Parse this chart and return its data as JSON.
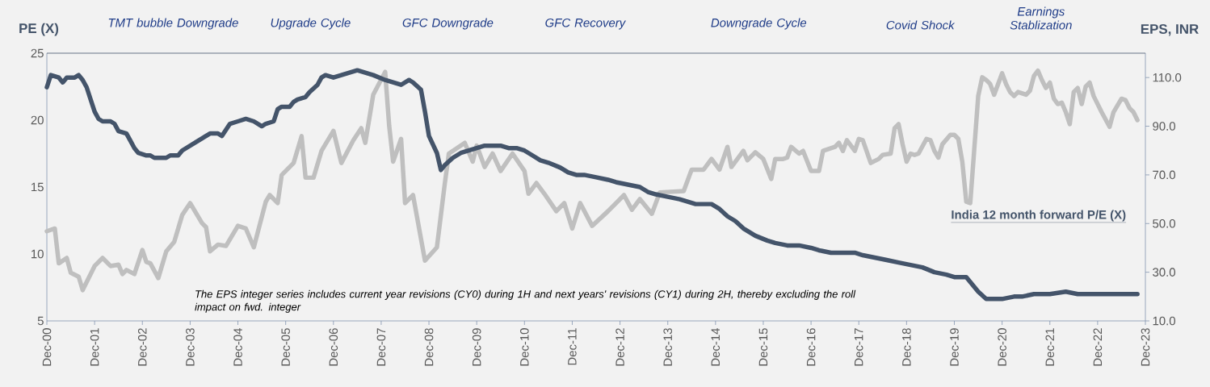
{
  "chart_data": {
    "type": "line",
    "ylabel": "PE (X)",
    "y2label": "EPS, INR",
    "xlim": [
      "2000-12",
      "2023-12"
    ],
    "xticks": [
      {
        "value": "2000-12",
        "label": "Dec-00"
      },
      {
        "value": "2001-12",
        "label": "Dec-01"
      },
      {
        "value": "2002-12",
        "label": "Dec-02"
      },
      {
        "value": "2003-12",
        "label": "Dec-03"
      },
      {
        "value": "2004-12",
        "label": "Dec-04"
      },
      {
        "value": "2005-12",
        "label": "Dec-05"
      },
      {
        "value": "2006-12",
        "label": "Dec-06"
      },
      {
        "value": "2007-12",
        "label": "Dec-07"
      },
      {
        "value": "2008-12",
        "label": "Dec-08"
      },
      {
        "value": "2009-12",
        "label": "Dec-09"
      },
      {
        "value": "2010-12",
        "label": "Dec-10"
      },
      {
        "value": "2011-12",
        "label": "Dec-11"
      },
      {
        "value": "2012-12",
        "label": "Dec-12"
      },
      {
        "value": "2013-12",
        "label": "Dec-13"
      },
      {
        "value": "2014-12",
        "label": "Dec-14"
      },
      {
        "value": "2015-12",
        "label": "Dec-15"
      },
      {
        "value": "2016-12",
        "label": "Dec-16"
      },
      {
        "value": "2017-12",
        "label": "Dec-17"
      },
      {
        "value": "2018-12",
        "label": "Dec-18"
      },
      {
        "value": "2019-12",
        "label": "Dec-19"
      },
      {
        "value": "2020-12",
        "label": "Dec-20"
      },
      {
        "value": "2021-12",
        "label": "Dec-21"
      },
      {
        "value": "2022-12",
        "label": "Dec-22"
      },
      {
        "value": "2023-12",
        "label": "Dec-23"
      }
    ],
    "ylim": [
      5,
      25
    ],
    "yticks": [
      5,
      10,
      15,
      20,
      25
    ],
    "y2lim": [
      10,
      120
    ],
    "y2ticks": [
      {
        "value": 10,
        "label": "10.0"
      },
      {
        "value": 30,
        "label": "30.0"
      },
      {
        "value": 50,
        "label": "50.0"
      },
      {
        "value": 70,
        "label": "70.0"
      },
      {
        "value": 90,
        "label": "90.0"
      },
      {
        "value": 110,
        "label": "110.0"
      }
    ],
    "series": [
      {
        "name": "India 12 month forward P/E (X)",
        "color": "#bfbfbf",
        "x": [
          "2000-12",
          "2001-02",
          "2001-03",
          "2001-05",
          "2001-06",
          "2001-08",
          "2001-09",
          "2001-12",
          "2002-02",
          "2002-04",
          "2002-06",
          "2002-07",
          "2002-08",
          "2002-10",
          "2002-12",
          "2003-01",
          "2003-02",
          "2003-04",
          "2003-06",
          "2003-08",
          "2003-10",
          "2003-12",
          "2004-03",
          "2004-04",
          "2004-05",
          "2004-07",
          "2004-09",
          "2004-12",
          "2005-02",
          "2005-04",
          "2005-07",
          "2005-08",
          "2005-10",
          "2005-11",
          "2006-02",
          "2006-04",
          "2006-05",
          "2006-07",
          "2006-09",
          "2006-12",
          "2007-02",
          "2007-05",
          "2007-07",
          "2007-08",
          "2007-10",
          "2008-01",
          "2008-02",
          "2008-03",
          "2008-05",
          "2008-06",
          "2008-08",
          "2008-11",
          "2009-02",
          "2009-04",
          "2009-05",
          "2009-09",
          "2009-11",
          "2009-12",
          "2010-02",
          "2010-04",
          "2010-06",
          "2010-09",
          "2010-12",
          "2011-01",
          "2011-03",
          "2011-05",
          "2011-08",
          "2011-10",
          "2011-12",
          "2012-02",
          "2012-05",
          "2012-09",
          "2013-01",
          "2013-03",
          "2013-05",
          "2013-08",
          "2013-10",
          "2014-04",
          "2014-06",
          "2014-09",
          "2014-11",
          "2015-01",
          "2015-03",
          "2015-04",
          "2015-07",
          "2015-08",
          "2015-10",
          "2015-12",
          "2016-02",
          "2016-03",
          "2016-05",
          "2016-06",
          "2016-07",
          "2016-09",
          "2016-10",
          "2016-12",
          "2017-02",
          "2017-03",
          "2017-06",
          "2017-07",
          "2017-08",
          "2017-09",
          "2017-11",
          "2017-12",
          "2018-01",
          "2018-03",
          "2018-05",
          "2018-06",
          "2018-08",
          "2018-09",
          "2018-10",
          "2018-11",
          "2018-12",
          "2019-01",
          "2019-02",
          "2019-03",
          "2019-05",
          "2019-06",
          "2019-07",
          "2019-08",
          "2019-09",
          "2019-11",
          "2019-12",
          "2020-01",
          "2020-02",
          "2020-03",
          "2020-04",
          "2020-05",
          "2020-06",
          "2020-07",
          "2020-08",
          "2020-09",
          "2020-10",
          "2020-11",
          "2020-12",
          "2021-01",
          "2021-02",
          "2021-03",
          "2021-04",
          "2021-06",
          "2021-07",
          "2021-08",
          "2021-09",
          "2021-10",
          "2021-11",
          "2021-12",
          "2022-01",
          "2022-02",
          "2022-03",
          "2022-04",
          "2022-05",
          "2022-06",
          "2022-07",
          "2022-08",
          "2022-09",
          "2022-10",
          "2022-11",
          "2023-01",
          "2023-03",
          "2023-04",
          "2023-06",
          "2023-07",
          "2023-08",
          "2023-09",
          "2023-10"
        ],
        "values": [
          11.7,
          11.9,
          9.3,
          9.7,
          8.6,
          8.3,
          7.3,
          9.1,
          9.7,
          9.1,
          9.2,
          8.5,
          8.8,
          8.5,
          10.3,
          9.4,
          9.3,
          8.2,
          10.2,
          10.9,
          12.9,
          13.8,
          12.3,
          12.0,
          10.2,
          10.7,
          10.6,
          12.1,
          11.9,
          10.5,
          13.9,
          14.4,
          13.8,
          15.9,
          16.8,
          18.8,
          15.7,
          15.7,
          17.7,
          19.2,
          16.8,
          18.5,
          19.4,
          18.3,
          21.9,
          23.6,
          19.6,
          16.9,
          18.6,
          13.8,
          14.4,
          9.5,
          10.5,
          15.3,
          17.5,
          18.3,
          16.9,
          18.1,
          16.5,
          17.5,
          16.2,
          17.5,
          16.2,
          14.5,
          15.3,
          14.5,
          13.2,
          13.8,
          11.9,
          13.8,
          12.1,
          13.2,
          14.4,
          13.3,
          14.1,
          13.0,
          14.6,
          14.7,
          16.3,
          16.3,
          17.1,
          16.3,
          18.0,
          16.5,
          17.7,
          17.0,
          17.6,
          17.1,
          15.6,
          17.1,
          17.1,
          17.2,
          18.0,
          17.5,
          17.7,
          16.2,
          16.2,
          17.7,
          18.0,
          18.3,
          17.7,
          18.5,
          17.7,
          18.6,
          18.5,
          16.8,
          17.1,
          17.4,
          17.5,
          19.4,
          19.7,
          18.2,
          16.9,
          17.5,
          17.4,
          17.5,
          18.6,
          18.5,
          17.7,
          17.2,
          18.2,
          18.9,
          18.9,
          18.6,
          16.9,
          13.9,
          13.8,
          17.8,
          21.8,
          23.2,
          23.0,
          22.7,
          21.9,
          22.7,
          23.5,
          22.7,
          22.1,
          21.8,
          22.1,
          21.9,
          22.2,
          23.3,
          23.7,
          23.0,
          22.4,
          22.8,
          21.6,
          21.2,
          21.3,
          20.6,
          19.7,
          22.1,
          22.4,
          21.2,
          22.5,
          22.8,
          21.8,
          20.6,
          19.5,
          20.6,
          21.6,
          21.5,
          20.9,
          20.6,
          20.0
        ]
      },
      {
        "axis": "y2",
        "color": "#44546a",
        "x": [
          "2000-12",
          "2001-01",
          "2001-03",
          "2001-04",
          "2001-05",
          "2001-06",
          "2001-07",
          "2001-08",
          "2001-09",
          "2001-10",
          "2001-11",
          "2001-12",
          "2002-01",
          "2002-02",
          "2002-04",
          "2002-05",
          "2002-06",
          "2002-08",
          "2002-09",
          "2002-10",
          "2002-11",
          "2003-01",
          "2003-02",
          "2003-03",
          "2003-05",
          "2003-06",
          "2003-07",
          "2003-09",
          "2003-10",
          "2003-12",
          "2004-02",
          "2004-03",
          "2004-05",
          "2004-07",
          "2004-08",
          "2004-10",
          "2004-12",
          "2005-02",
          "2005-04",
          "2005-06",
          "2005-07",
          "2005-09",
          "2005-10",
          "2005-11",
          "2006-01",
          "2006-02",
          "2006-03",
          "2006-05",
          "2006-06",
          "2006-08",
          "2006-09",
          "2006-10",
          "2006-12",
          "2007-02",
          "2007-04",
          "2007-06",
          "2007-08",
          "2007-10",
          "2008-01",
          "2008-03",
          "2008-05",
          "2008-07",
          "2008-08",
          "2008-10",
          "2008-11",
          "2008-12",
          "2009-02",
          "2009-03",
          "2009-04",
          "2009-06",
          "2009-08",
          "2009-10",
          "2009-12",
          "2010-02",
          "2010-04",
          "2010-06",
          "2010-08",
          "2010-10",
          "2010-12",
          "2011-02",
          "2011-04",
          "2011-06",
          "2011-09",
          "2011-11",
          "2012-01",
          "2012-03",
          "2012-06",
          "2012-09",
          "2012-11",
          "2013-02",
          "2013-05",
          "2013-07",
          "2013-09",
          "2013-12",
          "2014-03",
          "2014-05",
          "2014-07",
          "2014-09",
          "2014-11",
          "2015-01",
          "2015-03",
          "2015-05",
          "2015-07",
          "2015-10",
          "2016-01",
          "2016-03",
          "2016-06",
          "2016-09",
          "2016-12",
          "2017-02",
          "2017-05",
          "2017-07",
          "2017-11",
          "2018-01",
          "2018-04",
          "2018-07",
          "2018-10",
          "2019-01",
          "2019-04",
          "2019-07",
          "2019-10",
          "2019-12",
          "2020-03",
          "2020-04",
          "2020-06",
          "2020-08",
          "2020-09",
          "2020-12",
          "2021-03",
          "2021-05",
          "2021-08",
          "2021-12",
          "2022-04",
          "2022-07",
          "2022-10",
          "2023-02",
          "2023-06",
          "2023-08",
          "2023-10"
        ],
        "values": [
          106,
          111,
          110,
          108,
          110,
          110,
          110,
          111,
          109,
          106,
          101,
          96,
          93,
          92,
          92,
          91,
          88,
          87,
          84,
          81,
          79,
          78,
          78,
          77,
          77,
          77,
          78,
          78,
          80,
          82,
          84,
          85,
          87,
          87,
          86,
          91,
          92,
          93,
          92,
          90,
          91,
          92,
          97,
          98,
          98,
          100,
          101,
          102,
          104,
          107,
          110,
          111,
          110,
          111,
          112,
          113,
          112,
          111,
          109,
          108,
          107,
          109,
          108,
          105,
          96,
          86,
          79,
          72,
          74,
          77,
          79,
          80,
          81,
          82,
          82,
          82,
          81,
          81,
          80,
          78,
          76,
          75,
          73,
          71,
          70,
          70,
          69,
          68,
          67,
          66,
          65,
          63,
          62,
          61,
          60,
          59,
          58,
          58,
          58,
          56,
          53,
          51,
          48,
          45,
          43,
          42,
          41,
          41,
          40,
          39,
          38,
          38,
          38,
          37,
          36,
          35,
          34,
          33,
          32,
          30,
          29,
          28,
          28,
          26,
          22,
          19,
          19,
          19,
          20,
          20,
          21,
          21,
          22,
          21,
          21,
          21,
          21,
          21,
          21
        ]
      }
    ],
    "annotations": [
      "TMT bubble Downgrade",
      "Upgrade Cycle",
      "GFC Downgrade",
      "GFC Recovery",
      "Downgrade Cycle",
      "Covid Shock",
      "Earnings Stablization",
      "The EPS integer series includes current year revisions (CY0) during 1H and next years' revisions (CY1) during 2H, thereby excluding the roll impact on fwd. integer"
    ]
  }
}
